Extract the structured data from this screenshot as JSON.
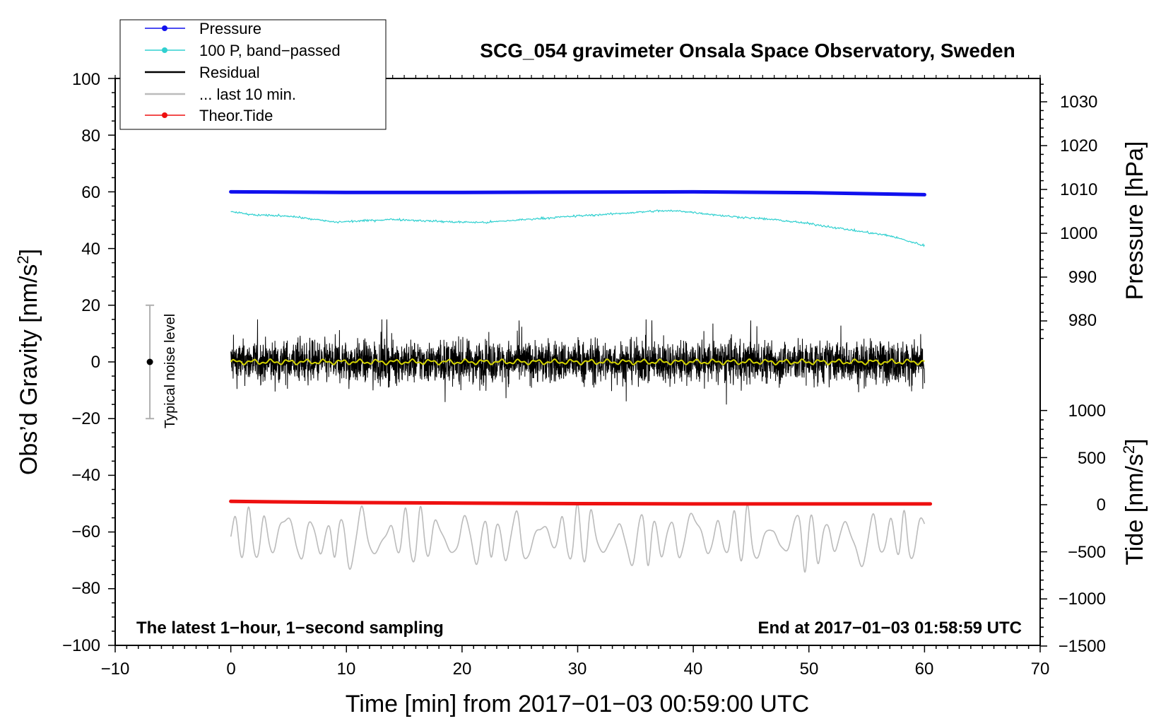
{
  "chart_data": {
    "type": "line",
    "title": "SCG_054 gravimeter Onsala Space Observatory, Sweden",
    "xlabel": "Time [min] from 2017−01−03 00:59:00 UTC",
    "ylabel_left": "Obs’d Gravity [nm/s",
    "ylabel_left_sup": "2",
    "ylabel_left_end": "]",
    "ylabel_right_pressure": "Pressure [hPa]",
    "ylabel_right_tide": "Tide [nm/s",
    "ylabel_right_tide_sup": "2",
    "ylabel_right_tide_end": "]",
    "xlim": [
      -10,
      70
    ],
    "ylim": [
      -100,
      100
    ],
    "x_ticks": [
      "−10",
      "0",
      "10",
      "20",
      "30",
      "40",
      "50",
      "60",
      "70"
    ],
    "y_ticks_left": [
      "100",
      "80",
      "60",
      "40",
      "20",
      "0",
      "−20",
      "−40",
      "−60",
      "−80",
      "−100"
    ],
    "pressure_ticks": [
      "1030",
      "1020",
      "1010",
      "1000",
      "990",
      "980"
    ],
    "tide_ticks": [
      "1000",
      "500",
      "0",
      "−500",
      "−1000",
      "−1500"
    ],
    "annotation_left": "The latest 1−hour, 1−second sampling",
    "annotation_right": "End at 2017−01−03 01:58:59 UTC",
    "noise_label": "Typical noise level",
    "noise_range": [
      -20,
      20
    ],
    "noise_x": -7,
    "legend": {
      "position": "top-left",
      "items": [
        {
          "label": "Pressure",
          "color": "#1010ee",
          "marker": true
        },
        {
          "label": "100 P, band−passed",
          "color": "#30d0d0",
          "marker": true
        },
        {
          "label": "Residual",
          "color": "#000000",
          "marker": false
        },
        {
          "label": "... last 10 min.",
          "color": "#bbbbbb",
          "marker": false
        },
        {
          "label": "Theor.Tide",
          "color": "#ee1010",
          "marker": true
        }
      ]
    },
    "series": [
      {
        "name": "Pressure",
        "color": "#1010ee",
        "x": [
          0,
          10,
          20,
          30,
          40,
          50,
          60
        ],
        "values": [
          60,
          59.8,
          59.8,
          59.9,
          60,
          59.7,
          59
        ]
      },
      {
        "name": "100 P, band-passed",
        "color": "#30d0d0",
        "x": [
          0,
          2,
          5,
          9,
          14,
          19,
          22,
          26,
          30,
          33,
          37,
          39,
          43,
          47,
          50,
          54,
          57,
          60
        ],
        "values": [
          53,
          51.8,
          51.5,
          49.3,
          50.3,
          49.4,
          49.2,
          50.4,
          51.5,
          52.2,
          53.3,
          53.2,
          51.4,
          50.2,
          48.8,
          46.3,
          44.5,
          41
        ]
      },
      {
        "name": "Residual",
        "color": "#000000",
        "x_range": [
          0,
          60
        ],
        "amplitude_typical": 8,
        "amplitude_max": 15
      },
      {
        "name": "Residual smoothed",
        "color": "#d4d400",
        "x_range": [
          0,
          60
        ],
        "values_about": 0
      },
      {
        "name": "Theor.Tide",
        "color": "#ee1010",
        "x": [
          0,
          10,
          20,
          30,
          40,
          50,
          60.5
        ],
        "values": [
          -49.2,
          -49.6,
          -49.8,
          -50,
          -50.1,
          -50.1,
          -50.1
        ]
      },
      {
        "name": "... last 10 min.",
        "color": "#bbbbbb",
        "x_range": [
          0,
          60
        ],
        "center": -62,
        "amplitude": 8
      }
    ]
  },
  "colors": {
    "pressure": "#1010ee",
    "bandpassed": "#30d0d0",
    "residual": "#000000",
    "smoothed": "#d4d400",
    "tide": "#ee1010",
    "last10": "#bbbbbb",
    "noise_bar": "#b0b0b0"
  }
}
